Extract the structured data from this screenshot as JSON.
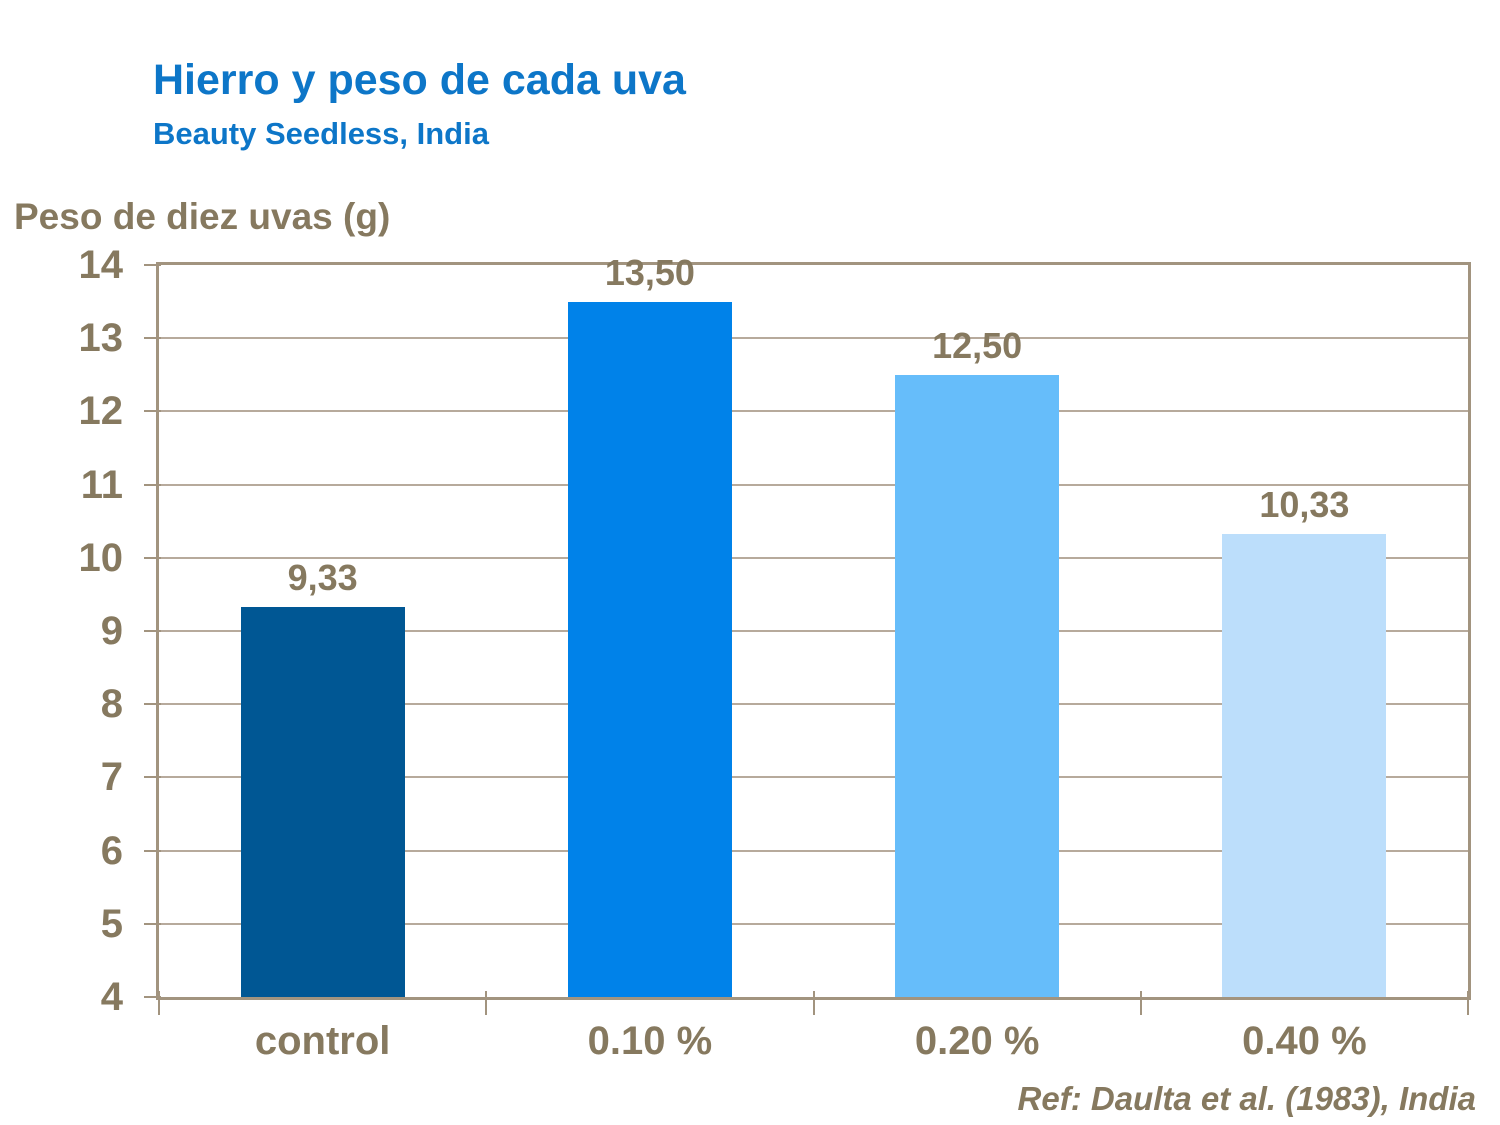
{
  "slide": {
    "title": "Hierro y peso de cada uva",
    "subtitle": "Beauty Seedless, India",
    "axis_title": "Peso de diez uvas (g)",
    "reference": "Ref: Daulta et al. (1983), India"
  },
  "colors": {
    "title_blue": "#0d76c8",
    "text_brown": "#86795f",
    "plot_frame": "#a2947f",
    "gridline": "#b7aa9c",
    "background": "#ffffff"
  },
  "chart_data": {
    "type": "bar",
    "title": "Hierro y peso de cada uva",
    "subtitle": "Beauty Seedless, India",
    "ylabel": "Peso de diez uvas (g)",
    "xlabel": "",
    "categories": [
      "control",
      "0.10 %",
      "0.20 %",
      "0.40 %"
    ],
    "values": [
      9.33,
      13.5,
      12.5,
      10.33
    ],
    "value_labels": [
      "9,33",
      "13,50",
      "12,50",
      "10,33"
    ],
    "bar_colors": [
      "#005794",
      "#0082e9",
      "#66bdfa",
      "#bcdefb"
    ],
    "ylim": [
      4,
      14
    ],
    "yticks": [
      4,
      5,
      6,
      7,
      8,
      9,
      10,
      11,
      12,
      13,
      14
    ],
    "grid": "horizontal",
    "legend": "none",
    "annotation": "Ref: Daulta et al. (1983), India"
  }
}
